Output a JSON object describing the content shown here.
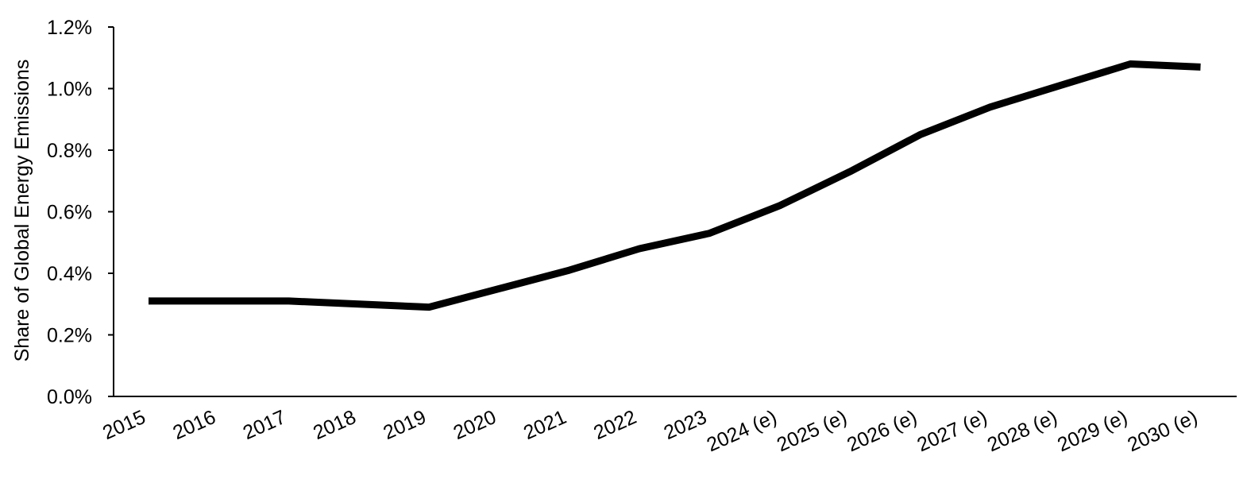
{
  "chart_data": {
    "type": "line",
    "title": "",
    "xlabel": "",
    "ylabel": "Share of Global Energy Emissions",
    "categories": [
      "2015",
      "2016",
      "2017",
      "2018",
      "2019",
      "2020",
      "2021",
      "2022",
      "2023",
      "2024 (e)",
      "2025 (e)",
      "2026 (e)",
      "2027 (e)",
      "2028 (e)",
      "2029 (e)",
      "2030 (e)"
    ],
    "series": [
      {
        "values": [
          0.31,
          0.31,
          0.31,
          0.3,
          0.29,
          0.35,
          0.41,
          0.48,
          0.53,
          0.62,
          0.73,
          0.85,
          0.94,
          1.01,
          1.08,
          1.07
        ],
        "color": "#000000"
      }
    ],
    "ylim": [
      0,
      1.2
    ],
    "yticks": [
      "0.0%",
      "0.2%",
      "0.4%",
      "0.6%",
      "0.8%",
      "1.0%",
      "1.2%"
    ],
    "grid": false,
    "legend": "none"
  }
}
